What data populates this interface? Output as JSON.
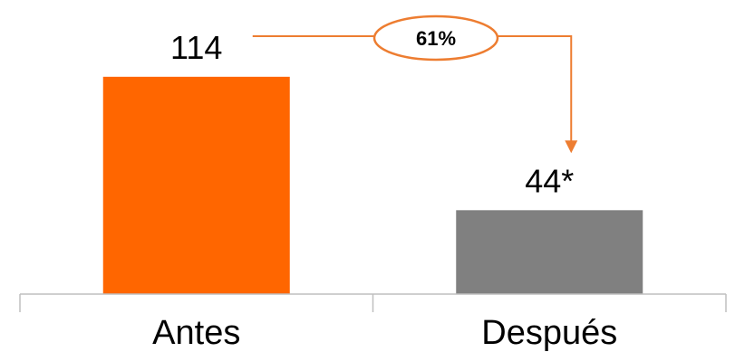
{
  "chart_data": {
    "type": "bar",
    "categories": [
      "Antes",
      "Después"
    ],
    "values": [
      114,
      44
    ],
    "value_labels": [
      "114",
      "44*"
    ],
    "ylim": [
      0,
      150
    ],
    "grid": false,
    "bar_colors": [
      "#ff6600",
      "#808080"
    ],
    "change_annotation": {
      "label": "61%",
      "from": "Antes",
      "to": "Después",
      "color": "#ed7d31"
    }
  }
}
